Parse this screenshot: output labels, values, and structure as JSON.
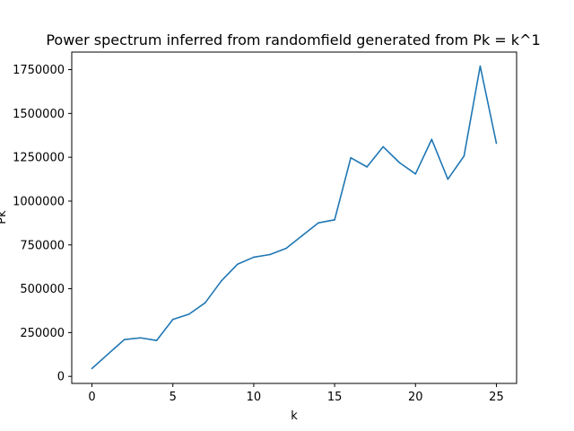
{
  "chart_data": {
    "type": "line",
    "title": "Power spectrum inferred from randomfield generated from Pk = k^1",
    "xlabel": "k",
    "ylabel": "Pk",
    "xlim": [
      -1.25,
      26.25
    ],
    "ylim": [
      -40000,
      1850000
    ],
    "grid": false,
    "legend": "none",
    "x_ticks": [
      0,
      5,
      10,
      15,
      20,
      25
    ],
    "y_ticks": [
      0,
      250000,
      500000,
      750000,
      1000000,
      1250000,
      1500000,
      1750000
    ],
    "x_tick_labels": [
      "0",
      "5",
      "10",
      "15",
      "20",
      "25"
    ],
    "y_tick_labels": [
      "0",
      "250000",
      "500000",
      "750000",
      "1000000",
      "1250000",
      "1500000",
      "1750000"
    ],
    "series": [
      {
        "color": "#1f77b4",
        "x": [
          0,
          1,
          2,
          3,
          4,
          5,
          6,
          7,
          8,
          9,
          10,
          11,
          12,
          13,
          14,
          15,
          16,
          17,
          18,
          19,
          20,
          21,
          22,
          23,
          24,
          25
        ],
        "y": [
          45000,
          128000,
          210000,
          220000,
          205000,
          325000,
          355000,
          420000,
          545000,
          640000,
          680000,
          695000,
          730000,
          803000,
          876000,
          893000,
          1247000,
          1195000,
          1310000,
          1220000,
          1155000,
          1352000,
          1125000,
          1257000,
          1770000,
          1330000
        ]
      }
    ]
  }
}
